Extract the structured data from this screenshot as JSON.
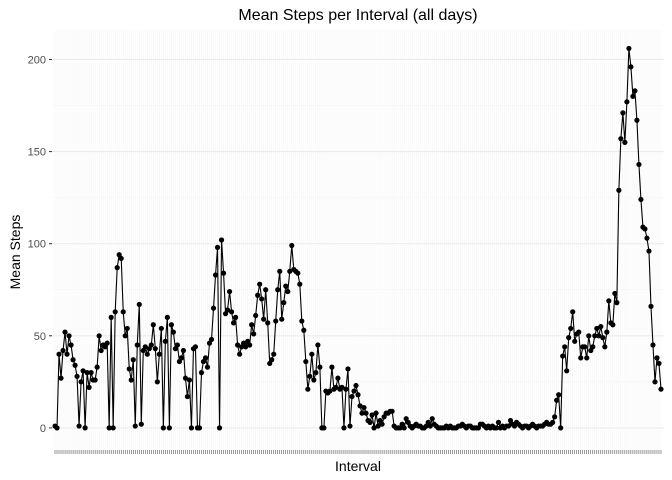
{
  "chart_data": {
    "type": "line",
    "title": "Mean Steps per Interval (all days)",
    "xlabel": "Interval",
    "ylabel": "Mean Steps",
    "ylim": [
      -12,
      216
    ],
    "yticks": [
      0,
      50,
      100,
      150,
      200
    ],
    "grid": true,
    "markers": true,
    "x_tick_labels_visible": false,
    "colors": {
      "panel_background": "#ffffff",
      "grid_major": "#ebebeb",
      "grid_minor": "#f5f5f5",
      "line": "#000000",
      "point": "#000000",
      "x_tick_marks": "#333333"
    },
    "series": [
      {
        "values": [
          1,
          0,
          40,
          27,
          42,
          52,
          40,
          50,
          45,
          37,
          34,
          28,
          1,
          25,
          31,
          0,
          30,
          22,
          30,
          26,
          26,
          33,
          50,
          42,
          45,
          44,
          46,
          0,
          60,
          0,
          63,
          87,
          94,
          92,
          63,
          50,
          54,
          32,
          26,
          37,
          1,
          45,
          67,
          2,
          42,
          44,
          40,
          43,
          45,
          56,
          43,
          25,
          40,
          54,
          0,
          47,
          60,
          0,
          56,
          52,
          43,
          45,
          36,
          38,
          42,
          27,
          17,
          26,
          0,
          43,
          44,
          0,
          0,
          30,
          36,
          38,
          33,
          46,
          48,
          65,
          83,
          98,
          0,
          102,
          84,
          62,
          64,
          74,
          63,
          57,
          60,
          45,
          40,
          44,
          46,
          44,
          47,
          45,
          56,
          51,
          61,
          72,
          78,
          70,
          59,
          75,
          57,
          35,
          37,
          40,
          58,
          75,
          85,
          59,
          68,
          77,
          74,
          85,
          99,
          86,
          85,
          84,
          78,
          58,
          53,
          36,
          21,
          28,
          40,
          26,
          30,
          45,
          33,
          0,
          0,
          20,
          19,
          20,
          33,
          21,
          22,
          27,
          21,
          22,
          0,
          21,
          32,
          1,
          17,
          20,
          23,
          18,
          12,
          8,
          11,
          8,
          4,
          3,
          7,
          0,
          8,
          1,
          4,
          2,
          6,
          8,
          8,
          9,
          9,
          1,
          0,
          0,
          0,
          2,
          0,
          5,
          3,
          1,
          0,
          1,
          2,
          1,
          1,
          0,
          0,
          1,
          3,
          1,
          5,
          2,
          1,
          0,
          0,
          0,
          0,
          1,
          0,
          1,
          0,
          0,
          0,
          1,
          1,
          2,
          1,
          0,
          1,
          1,
          0,
          0,
          0,
          0,
          2,
          2,
          1,
          0,
          1,
          0,
          1,
          0,
          0,
          3,
          0,
          1,
          0,
          1,
          1,
          4,
          2,
          1,
          3,
          2,
          1,
          0,
          1,
          1,
          0,
          1,
          2,
          1,
          0,
          1,
          1,
          1,
          2,
          3,
          2,
          2,
          3,
          6,
          15,
          18,
          0,
          39,
          44,
          31,
          49,
          54,
          63,
          47,
          51,
          52,
          38,
          44,
          44,
          38,
          50,
          42,
          44,
          50,
          54,
          50,
          55,
          49,
          44,
          52,
          69,
          57,
          56,
          73,
          68,
          129,
          157,
          171,
          155,
          177,
          206,
          196,
          180,
          183,
          167,
          143,
          124,
          109,
          108,
          103,
          96,
          66,
          45,
          25,
          38,
          35,
          21
        ]
      }
    ]
  }
}
